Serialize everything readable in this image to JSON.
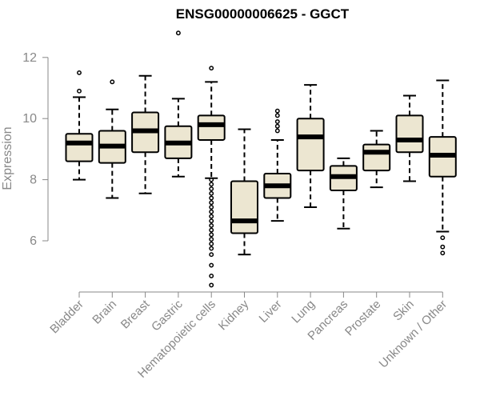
{
  "chart_data": {
    "type": "boxplot",
    "title": "ENSG00000006625 - GGCT",
    "xlabel": "",
    "ylabel": "Expression",
    "ylim": [
      4.3,
      13.0
    ],
    "yticks": [
      6,
      8,
      10,
      12
    ],
    "colors": {
      "box_fill": "#ece6d1",
      "stroke": "#000000",
      "axis": "#888888"
    },
    "categories": [
      "Bladder",
      "Brain",
      "Breast",
      "Gastric",
      "Hematopoietic cells",
      "Kidney",
      "Liver",
      "Lung",
      "Pancreas",
      "Prostate",
      "Skin",
      "Unknown / Other"
    ],
    "boxes": [
      {
        "category": "Bladder",
        "whisker_low": 8.0,
        "q1": 8.6,
        "median": 9.2,
        "q3": 9.5,
        "whisker_high": 10.7,
        "outliers": [
          10.9,
          11.5
        ]
      },
      {
        "category": "Brain",
        "whisker_low": 7.4,
        "q1": 8.55,
        "median": 9.1,
        "q3": 9.6,
        "whisker_high": 10.3,
        "outliers": [
          11.2
        ]
      },
      {
        "category": "Breast",
        "whisker_low": 7.55,
        "q1": 8.9,
        "median": 9.6,
        "q3": 10.2,
        "whisker_high": 11.4,
        "outliers": []
      },
      {
        "category": "Gastric",
        "whisker_low": 8.1,
        "q1": 8.7,
        "median": 9.2,
        "q3": 9.75,
        "whisker_high": 10.65,
        "outliers": [
          12.8
        ]
      },
      {
        "category": "Hematopoietic cells",
        "whisker_low": 8.05,
        "q1": 9.3,
        "median": 9.8,
        "q3": 10.1,
        "whisker_high": 11.2,
        "outliers": [
          11.65,
          8.0,
          7.85,
          7.7,
          7.55,
          7.4,
          7.25,
          7.1,
          6.95,
          6.8,
          6.65,
          6.5,
          6.35,
          6.2,
          6.05,
          5.9,
          5.75,
          5.55,
          5.2,
          4.85,
          4.55
        ]
      },
      {
        "category": "Kidney",
        "whisker_low": 5.55,
        "q1": 6.25,
        "median": 6.65,
        "q3": 7.95,
        "whisker_high": 9.65,
        "outliers": []
      },
      {
        "category": "Liver",
        "whisker_low": 6.65,
        "q1": 7.4,
        "median": 7.8,
        "q3": 8.2,
        "whisker_high": 9.3,
        "outliers": [
          9.6,
          9.75,
          9.9,
          10.1,
          10.25
        ]
      },
      {
        "category": "Lung",
        "whisker_low": 7.1,
        "q1": 8.3,
        "median": 9.4,
        "q3": 10.0,
        "whisker_high": 11.1,
        "outliers": []
      },
      {
        "category": "Pancreas",
        "whisker_low": 6.4,
        "q1": 7.65,
        "median": 8.1,
        "q3": 8.45,
        "whisker_high": 8.7,
        "outliers": []
      },
      {
        "category": "Prostate",
        "whisker_low": 7.75,
        "q1": 8.3,
        "median": 8.9,
        "q3": 9.15,
        "whisker_high": 9.6,
        "outliers": []
      },
      {
        "category": "Skin",
        "whisker_low": 7.95,
        "q1": 8.9,
        "median": 9.3,
        "q3": 10.1,
        "whisker_high": 10.75,
        "outliers": []
      },
      {
        "category": "Unknown / Other",
        "whisker_low": 6.3,
        "q1": 8.1,
        "median": 8.8,
        "q3": 9.4,
        "whisker_high": 11.25,
        "outliers": [
          6.1,
          5.8,
          5.6
        ]
      }
    ]
  }
}
